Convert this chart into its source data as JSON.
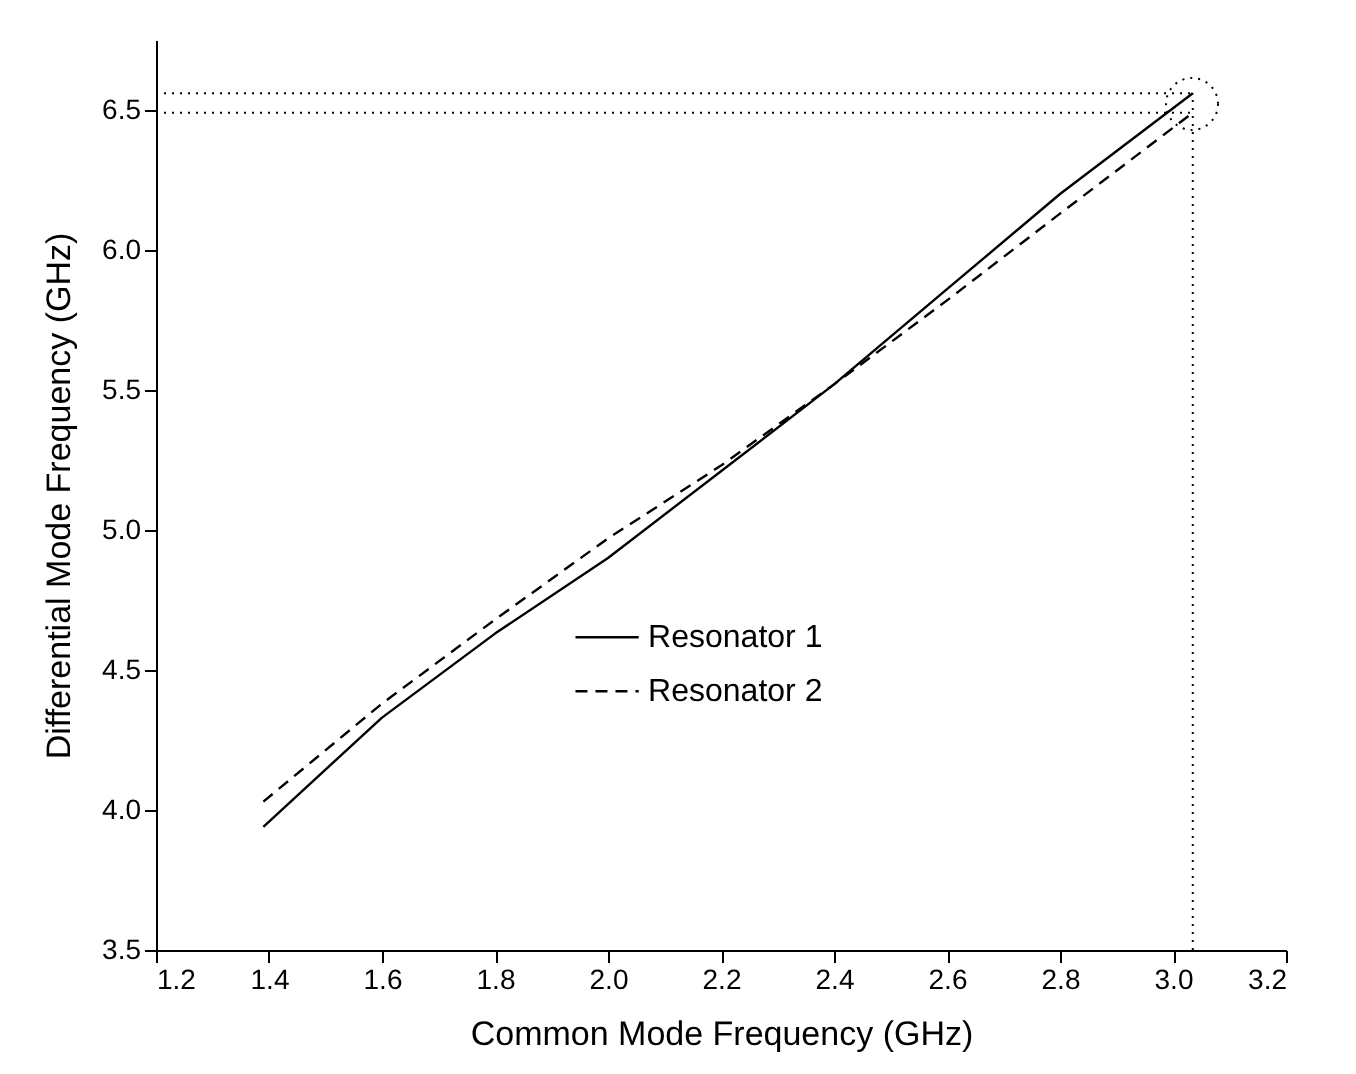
{
  "chart_data": {
    "type": "line",
    "xlabel": "Common Mode Frequency (GHz)",
    "ylabel": "Differential Mode Frequency (GHz)",
    "xlim": [
      1.2,
      3.2
    ],
    "xticks": [
      1.2,
      1.4,
      1.6,
      1.8,
      {
        "value": 2,
        "label": "2.0"
      },
      2.2,
      2.4,
      2.6,
      2.8,
      {
        "value": 3,
        "label": "3.0"
      },
      3.2
    ],
    "ylim": [
      3.5,
      6.75
    ],
    "yticks": [
      3.5,
      {
        "value": 4,
        "label": "4.0"
      },
      4.5,
      {
        "value": 5,
        "label": "5.0"
      },
      5.5,
      {
        "value": 6,
        "label": "6.0"
      },
      6.5
    ],
    "x": [
      1.39,
      1.6,
      1.8,
      2.0,
      2.2,
      2.4,
      2.6,
      2.8,
      3.035
    ],
    "series": [
      {
        "name": "Resonator 1",
        "color": "#000000",
        "line_style": "solid",
        "values": [
          3.94,
          4.33,
          4.63,
          4.9,
          5.21,
          5.52,
          5.86,
          6.2,
          6.56
        ]
      },
      {
        "name": "Resonator 2",
        "color": "#000000",
        "line_style": "dashed",
        "values": [
          4.03,
          4.38,
          4.68,
          4.97,
          5.23,
          5.52,
          5.82,
          6.13,
          6.49
        ]
      }
    ],
    "ref_lines": [
      {
        "axis": "y",
        "value": 6.56,
        "line_style": "dotted"
      },
      {
        "axis": "y",
        "value": 6.49,
        "line_style": "dotted"
      },
      {
        "axis": "x",
        "value": 3.035,
        "line_style": "dotted"
      }
    ],
    "legend": "bottom",
    "grid": false
  }
}
